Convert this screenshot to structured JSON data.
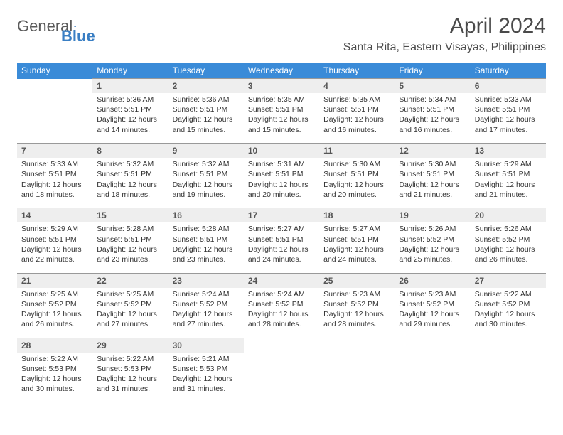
{
  "brand": {
    "part1": "General",
    "part2": "Blue"
  },
  "title": "April 2024",
  "location": "Santa Rita, Eastern Visayas, Philippines",
  "colors": {
    "header_bg": "#3a8bd8",
    "header_text": "#ffffff",
    "daynum_bg": "#eeeeee",
    "daynum_border": "#999999",
    "body_text": "#333333",
    "brand_gray": "#5a5a5a",
    "brand_blue": "#3a7fc4",
    "page_bg": "#ffffff"
  },
  "day_names": [
    "Sunday",
    "Monday",
    "Tuesday",
    "Wednesday",
    "Thursday",
    "Friday",
    "Saturday"
  ],
  "weeks": [
    {
      "nums": [
        "",
        "1",
        "2",
        "3",
        "4",
        "5",
        "6"
      ],
      "cells": [
        [],
        [
          "Sunrise: 5:36 AM",
          "Sunset: 5:51 PM",
          "Daylight: 12 hours",
          "and 14 minutes."
        ],
        [
          "Sunrise: 5:36 AM",
          "Sunset: 5:51 PM",
          "Daylight: 12 hours",
          "and 15 minutes."
        ],
        [
          "Sunrise: 5:35 AM",
          "Sunset: 5:51 PM",
          "Daylight: 12 hours",
          "and 15 minutes."
        ],
        [
          "Sunrise: 5:35 AM",
          "Sunset: 5:51 PM",
          "Daylight: 12 hours",
          "and 16 minutes."
        ],
        [
          "Sunrise: 5:34 AM",
          "Sunset: 5:51 PM",
          "Daylight: 12 hours",
          "and 16 minutes."
        ],
        [
          "Sunrise: 5:33 AM",
          "Sunset: 5:51 PM",
          "Daylight: 12 hours",
          "and 17 minutes."
        ]
      ]
    },
    {
      "nums": [
        "7",
        "8",
        "9",
        "10",
        "11",
        "12",
        "13"
      ],
      "cells": [
        [
          "Sunrise: 5:33 AM",
          "Sunset: 5:51 PM",
          "Daylight: 12 hours",
          "and 18 minutes."
        ],
        [
          "Sunrise: 5:32 AM",
          "Sunset: 5:51 PM",
          "Daylight: 12 hours",
          "and 18 minutes."
        ],
        [
          "Sunrise: 5:32 AM",
          "Sunset: 5:51 PM",
          "Daylight: 12 hours",
          "and 19 minutes."
        ],
        [
          "Sunrise: 5:31 AM",
          "Sunset: 5:51 PM",
          "Daylight: 12 hours",
          "and 20 minutes."
        ],
        [
          "Sunrise: 5:30 AM",
          "Sunset: 5:51 PM",
          "Daylight: 12 hours",
          "and 20 minutes."
        ],
        [
          "Sunrise: 5:30 AM",
          "Sunset: 5:51 PM",
          "Daylight: 12 hours",
          "and 21 minutes."
        ],
        [
          "Sunrise: 5:29 AM",
          "Sunset: 5:51 PM",
          "Daylight: 12 hours",
          "and 21 minutes."
        ]
      ]
    },
    {
      "nums": [
        "14",
        "15",
        "16",
        "17",
        "18",
        "19",
        "20"
      ],
      "cells": [
        [
          "Sunrise: 5:29 AM",
          "Sunset: 5:51 PM",
          "Daylight: 12 hours",
          "and 22 minutes."
        ],
        [
          "Sunrise: 5:28 AM",
          "Sunset: 5:51 PM",
          "Daylight: 12 hours",
          "and 23 minutes."
        ],
        [
          "Sunrise: 5:28 AM",
          "Sunset: 5:51 PM",
          "Daylight: 12 hours",
          "and 23 minutes."
        ],
        [
          "Sunrise: 5:27 AM",
          "Sunset: 5:51 PM",
          "Daylight: 12 hours",
          "and 24 minutes."
        ],
        [
          "Sunrise: 5:27 AM",
          "Sunset: 5:51 PM",
          "Daylight: 12 hours",
          "and 24 minutes."
        ],
        [
          "Sunrise: 5:26 AM",
          "Sunset: 5:52 PM",
          "Daylight: 12 hours",
          "and 25 minutes."
        ],
        [
          "Sunrise: 5:26 AM",
          "Sunset: 5:52 PM",
          "Daylight: 12 hours",
          "and 26 minutes."
        ]
      ]
    },
    {
      "nums": [
        "21",
        "22",
        "23",
        "24",
        "25",
        "26",
        "27"
      ],
      "cells": [
        [
          "Sunrise: 5:25 AM",
          "Sunset: 5:52 PM",
          "Daylight: 12 hours",
          "and 26 minutes."
        ],
        [
          "Sunrise: 5:25 AM",
          "Sunset: 5:52 PM",
          "Daylight: 12 hours",
          "and 27 minutes."
        ],
        [
          "Sunrise: 5:24 AM",
          "Sunset: 5:52 PM",
          "Daylight: 12 hours",
          "and 27 minutes."
        ],
        [
          "Sunrise: 5:24 AM",
          "Sunset: 5:52 PM",
          "Daylight: 12 hours",
          "and 28 minutes."
        ],
        [
          "Sunrise: 5:23 AM",
          "Sunset: 5:52 PM",
          "Daylight: 12 hours",
          "and 28 minutes."
        ],
        [
          "Sunrise: 5:23 AM",
          "Sunset: 5:52 PM",
          "Daylight: 12 hours",
          "and 29 minutes."
        ],
        [
          "Sunrise: 5:22 AM",
          "Sunset: 5:52 PM",
          "Daylight: 12 hours",
          "and 30 minutes."
        ]
      ]
    },
    {
      "nums": [
        "28",
        "29",
        "30",
        "",
        "",
        "",
        ""
      ],
      "cells": [
        [
          "Sunrise: 5:22 AM",
          "Sunset: 5:53 PM",
          "Daylight: 12 hours",
          "and 30 minutes."
        ],
        [
          "Sunrise: 5:22 AM",
          "Sunset: 5:53 PM",
          "Daylight: 12 hours",
          "and 31 minutes."
        ],
        [
          "Sunrise: 5:21 AM",
          "Sunset: 5:53 PM",
          "Daylight: 12 hours",
          "and 31 minutes."
        ],
        [],
        [],
        [],
        []
      ]
    }
  ]
}
